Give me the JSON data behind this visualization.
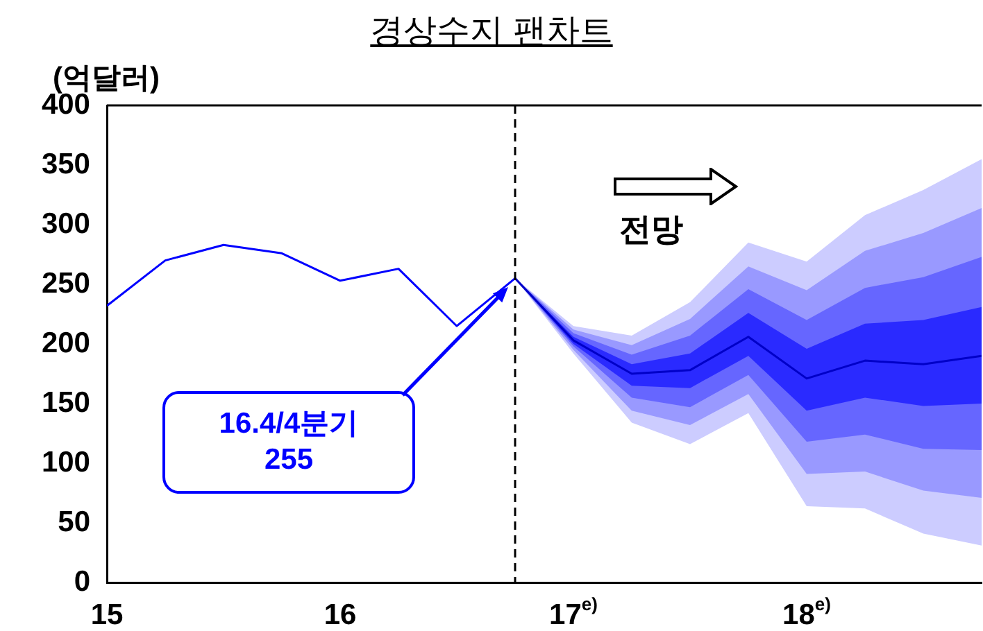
{
  "chart_data": {
    "type": "line",
    "title": "경상수지 팬차트",
    "ylabel": "(억달러)",
    "x": [
      15,
      15.25,
      15.5,
      15.75,
      16,
      16.25,
      16.5,
      16.75,
      17,
      17.25,
      17.5,
      17.75,
      18,
      18.25,
      18.5,
      18.75
    ],
    "xlim": [
      15,
      18.75
    ],
    "xticks": [
      15,
      16,
      {
        "value": 17,
        "label": "17$^{e)}$"
      },
      {
        "value": 18,
        "label": "18$^{e)}$"
      }
    ],
    "ylim": [
      0,
      400
    ],
    "yticks": [
      0,
      50,
      100,
      150,
      200,
      250,
      300,
      350,
      400
    ],
    "series": [
      {
        "color": "#0000ff",
        "values": [
          232,
          270,
          283,
          276,
          253,
          263,
          215,
          255,
          null,
          null,
          null,
          null,
          null,
          null,
          null,
          null
        ]
      },
      {
        "color": "#ccccff",
        "values": [
          null,
          null,
          null,
          null,
          null,
          null,
          null,
          null,
          null,
          null,
          null,
          null,
          null,
          null,
          null,
          null
        ],
        "lower": [
          null,
          null,
          null,
          null,
          null,
          null,
          null,
          255,
          192,
          134,
          116,
          142,
          64,
          62,
          41,
          31
        ],
        "upper": [
          null,
          null,
          null,
          null,
          null,
          null,
          null,
          255,
          215,
          207,
          235,
          285,
          269,
          308,
          329,
          355
        ]
      },
      {
        "color": "#9999ff",
        "values": [
          null,
          null,
          null,
          null,
          null,
          null,
          null,
          null,
          null,
          null,
          null,
          null,
          null,
          null,
          null,
          null
        ],
        "lower": [
          null,
          null,
          null,
          null,
          null,
          null,
          null,
          255,
          195,
          144,
          132,
          158,
          91,
          93,
          77,
          71
        ],
        "upper": [
          null,
          null,
          null,
          null,
          null,
          null,
          null,
          255,
          212,
          199,
          221,
          265,
          245,
          278,
          293,
          314
        ]
      },
      {
        "color": "#6666ff",
        "values": [
          null,
          null,
          null,
          null,
          null,
          null,
          null,
          null,
          null,
          null,
          null,
          null,
          null,
          null,
          null,
          null
        ],
        "lower": [
          null,
          null,
          null,
          null,
          null,
          null,
          null,
          255,
          198,
          155,
          147,
          174,
          118,
          124,
          112,
          111
        ],
        "upper": [
          null,
          null,
          null,
          null,
          null,
          null,
          null,
          255,
          209,
          191,
          207,
          246,
          220,
          247,
          256,
          273
        ]
      },
      {
        "color": "#0000c8",
        "values": [
          null,
          null,
          null,
          null,
          null,
          null,
          null,
          255,
          203,
          175,
          178,
          206,
          171,
          186,
          183,
          190
        ]
      },
      {
        "color": "#2a2aff",
        "values": [
          null,
          null,
          null,
          null,
          null,
          null,
          null,
          null,
          null,
          null,
          null,
          null,
          null,
          null,
          null,
          null
        ],
        "lower": [
          null,
          null,
          null,
          null,
          null,
          null,
          null,
          255,
          200,
          165,
          163,
          190,
          144,
          155,
          148,
          150
        ],
        "upper": [
          null,
          null,
          null,
          null,
          null,
          null,
          null,
          255,
          206,
          183,
          192,
          226,
          196,
          217,
          220,
          231
        ]
      }
    ],
    "ref_lines": [
      {
        "axis": "x",
        "value": 16.75,
        "color": "#000000",
        "line_style": "dashed"
      }
    ],
    "annotations": [
      "16.4/4분기\n255",
      "전망"
    ],
    "grid": false,
    "legend": false,
    "marker": "none",
    "line_style": "solid"
  }
}
